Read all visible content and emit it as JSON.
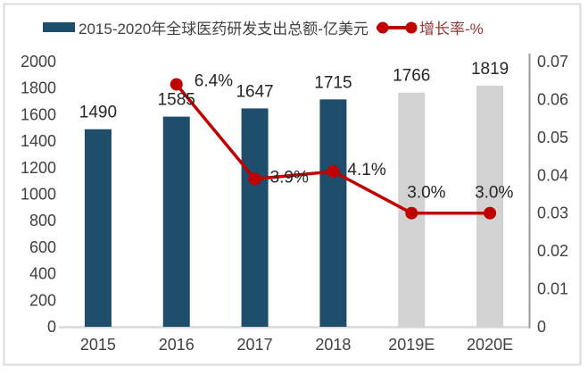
{
  "page": {
    "background": "#FFFFFF",
    "frame_border_color": "#DBDBDB"
  },
  "chart_data": {
    "type": "combo-bar-line",
    "title": "",
    "categories": [
      "2015",
      "2016",
      "2017",
      "2018",
      "2019E",
      "2020E"
    ],
    "series": [
      {
        "name": "2015-2020年全球医药研发支出总额-亿美元",
        "type": "bar",
        "axis": "left",
        "values": [
          1490,
          1585,
          1647,
          1715,
          1766,
          1819
        ],
        "data_labels": [
          "1490",
          "1585",
          "1647",
          "1715",
          "1766",
          "1819"
        ],
        "bar_colors": [
          "#1F4E6C",
          "#1F4E6C",
          "#1F4E6C",
          "#1F4E6C",
          "#D2D2D2",
          "#D2D2D2"
        ]
      },
      {
        "name": "增长率-%",
        "type": "line",
        "axis": "right",
        "color": "#C00000",
        "values": [
          null,
          0.064,
          0.039,
          0.041,
          0.03,
          0.03
        ],
        "data_labels": [
          null,
          "6.4%",
          "3.9%",
          "4.1%",
          "3.0%",
          "3.0%"
        ],
        "label_offsets": [
          null,
          [
            20,
            2
          ],
          [
            17,
            4
          ],
          [
            16,
            4
          ],
          [
            -5,
            -17
          ],
          [
            -17,
            -17
          ]
        ]
      }
    ],
    "axes": {
      "left": {
        "min": 0,
        "max": 2000,
        "tick_labels": [
          "2000",
          "1800",
          "1600",
          "1400",
          "1200",
          "1000",
          "800",
          "600",
          "400",
          "200",
          "0"
        ]
      },
      "right": {
        "min": 0,
        "max": 0.07,
        "tick_labels": [
          "0.07",
          "0.06",
          "0.05",
          "0.04",
          "0.03",
          "0.02",
          "0.01",
          "0"
        ]
      }
    },
    "legend": {
      "position": "top",
      "entries": [
        {
          "label": "2015-2020年全球医药研发支出总额-亿美元",
          "marker": "bar-swatch",
          "color": "#1F4E6C",
          "label_color": "#404040"
        },
        {
          "label": "增长率-%",
          "marker": "line-with-dots",
          "color": "#C00000",
          "label_color": "#953735"
        }
      ]
    },
    "styles": {
      "bar_actual_color": "#1F4E6C",
      "bar_estimate_color": "#D2D2D2",
      "line_color": "#C00000",
      "axis_text_color": "#404040",
      "data_label_color": "#262626",
      "x_axis_line_color": "#D9D9D9",
      "right_axis_line_color": "#9B9B9B",
      "grid": "off"
    }
  }
}
